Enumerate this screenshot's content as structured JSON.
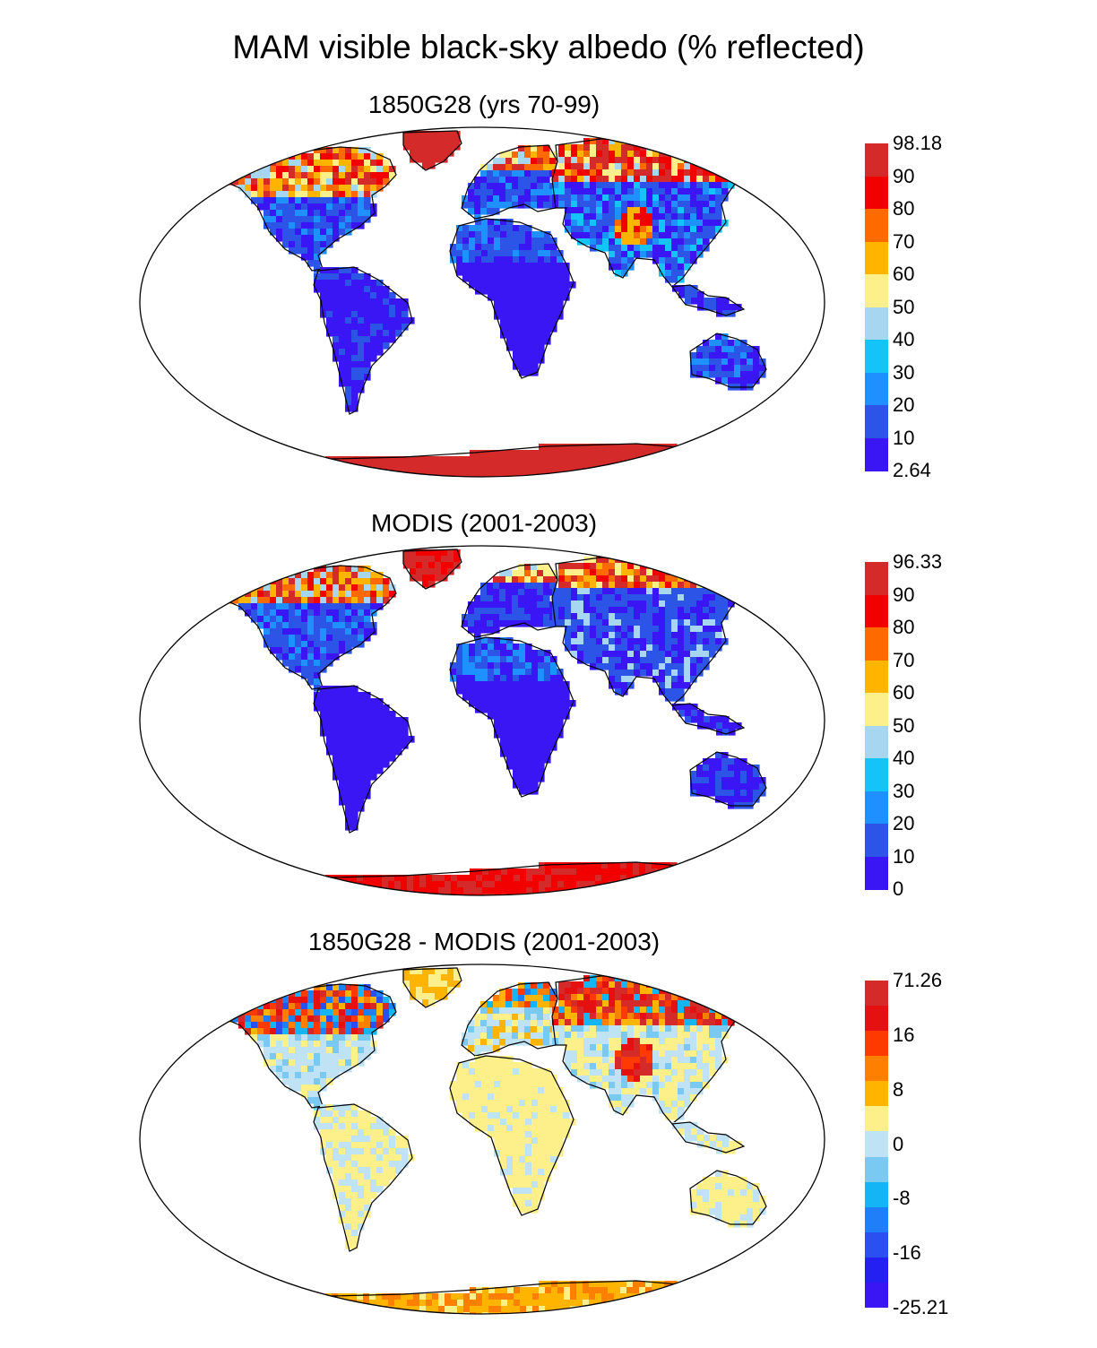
{
  "title": "MAM visible black-sky albedo (% reflected)",
  "panels": [
    {
      "id": "model",
      "title": "1850G28 (yrs 70-99)",
      "colorbar": {
        "colors": [
          "#d42a2a",
          "#f20000",
          "#ff6a00",
          "#ffb400",
          "#fdf08a",
          "#a7d6f1",
          "#14c3f7",
          "#1e90ff",
          "#2c55e8",
          "#3a16f5"
        ],
        "labels": [
          "98.18",
          "90",
          "80",
          "70",
          "60",
          "50",
          "40",
          "30",
          "20",
          "10",
          "2.64"
        ]
      },
      "scheme": "albedo"
    },
    {
      "id": "obs",
      "title": "MODIS (2001-2003)",
      "colorbar": {
        "colors": [
          "#d42a2a",
          "#f20000",
          "#ff6a00",
          "#ffb400",
          "#fdf08a",
          "#a7d6f1",
          "#14c3f7",
          "#1e90ff",
          "#2c55e8",
          "#3a16f5"
        ],
        "labels": [
          "96.33",
          "90",
          "80",
          "70",
          "60",
          "50",
          "40",
          "30",
          "20",
          "10",
          "0"
        ]
      },
      "scheme": "albedo-obs"
    },
    {
      "id": "diff",
      "title": "1850G28 - MODIS (2001-2003)",
      "colorbar": {
        "colors": [
          "#d42a2a",
          "#e51010",
          "#ff3a00",
          "#ff7f00",
          "#ffb400",
          "#fdf08a",
          "#bfe2f5",
          "#7ac9f2",
          "#14b4f5",
          "#1e7ff8",
          "#2a50f0",
          "#2420f2",
          "#3a16f5"
        ],
        "labels": [
          "71.26",
          "",
          "16",
          "",
          "8",
          "",
          "0",
          "",
          "-8",
          "",
          "-16",
          "",
          "-25.21"
        ]
      },
      "scheme": "diff"
    }
  ]
}
